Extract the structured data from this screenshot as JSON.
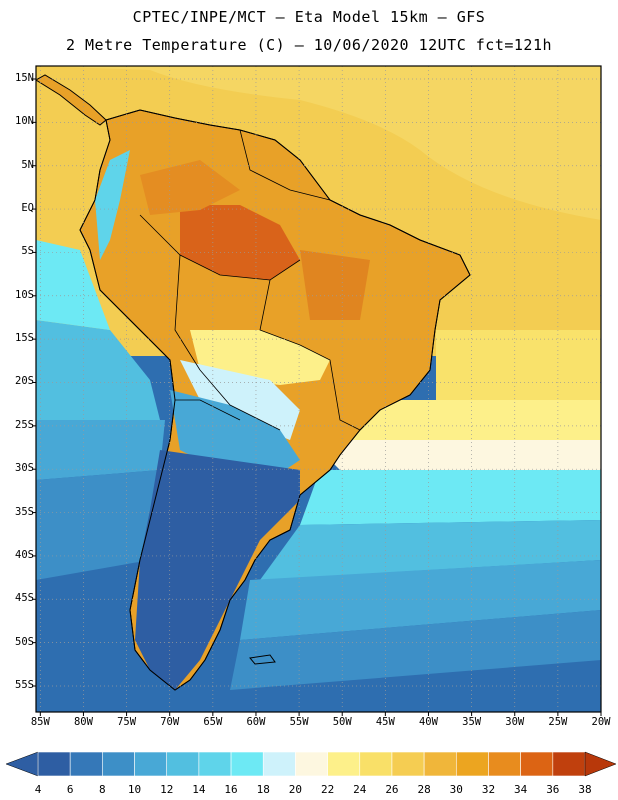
{
  "header": {
    "line1": "CPTEC/INPE/MCT –  Eta Model 15km – GFS",
    "line2": "2 Metre Temperature (C) – 10/06/2020 12UTC fct=121h"
  },
  "map": {
    "lat_labels": [
      "15N",
      "10N",
      "5N",
      "EQ",
      "5S",
      "10S",
      "15S",
      "20S",
      "25S",
      "30S",
      "35S",
      "40S",
      "45S",
      "50S",
      "55S"
    ],
    "lon_labels": [
      "85W",
      "80W",
      "75W",
      "70W",
      "65W",
      "60W",
      "55W",
      "50W",
      "45W",
      "40W",
      "35W",
      "30W",
      "25W",
      "20W"
    ],
    "lat_range": [
      -58,
      16.5
    ],
    "lon_range": [
      -85.5,
      -20
    ]
  },
  "colorbar": {
    "labels": [
      "4",
      "6",
      "8",
      "10",
      "12",
      "14",
      "16",
      "18",
      "20",
      "22",
      "24",
      "26",
      "28",
      "30",
      "32",
      "34",
      "36",
      "38"
    ],
    "colors": [
      "#2e5ea3",
      "#3578b8",
      "#3d8fc7",
      "#48a8d6",
      "#52bfe0",
      "#5fd4ea",
      "#6de9f4",
      "#cef2fb",
      "#fdf7e0",
      "#fdf08a",
      "#f9e068",
      "#f5cd52",
      "#f0b63a",
      "#eca520",
      "#e88c1e",
      "#dc6414",
      "#c0400d"
    ],
    "low_color": "#2e5ea3",
    "high_color": "#b8380a"
  }
}
